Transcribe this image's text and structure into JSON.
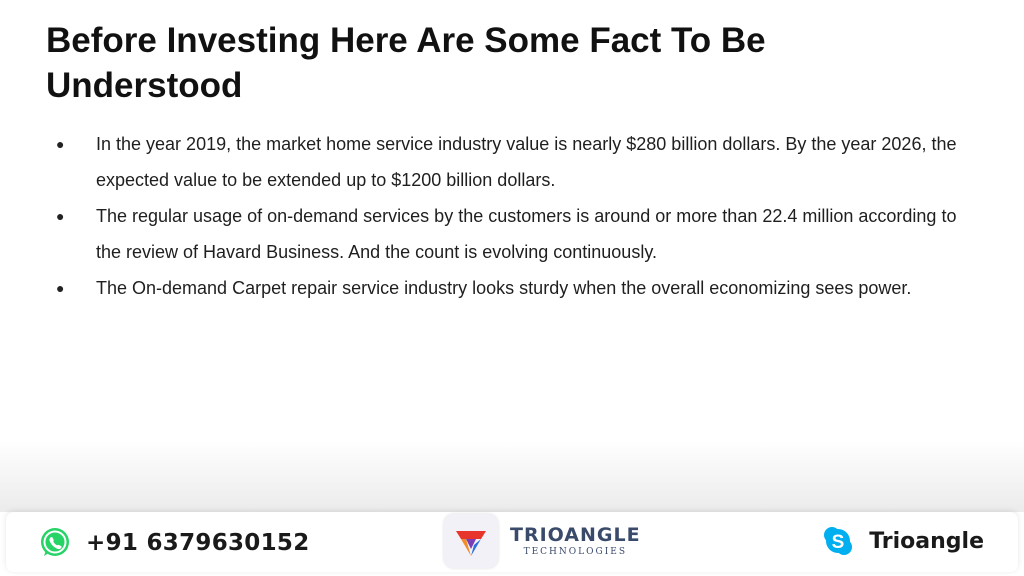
{
  "slide": {
    "title": "Before Investing Here Are Some Fact To Be Understood",
    "bullet_symbol": "●",
    "bullets": [
      "In the year 2019, the market home service industry value is nearly $280 billion dollars. By the year 2026, the expected value to be extended up to $1200 billion dollars.",
      "The regular usage of on-demand services by the customers is around or more than 22.4 million according to the review of Havard Business. And the count is evolving continuously.",
      "The On-demand Carpet repair service industry looks sturdy when the overall economizing sees power."
    ]
  },
  "footer": {
    "phone": "+91 6379630152",
    "phone_icon": "whatsapp-icon",
    "brand_name": "TRIOANGLE",
    "brand_sub": "TECHNOLOGIES",
    "logo_icon": "trioangle-logo-icon",
    "skype_name": "Trioangle",
    "skype_icon": "skype-icon",
    "colors": {
      "whatsapp": "#25d366",
      "skype": "#00aff0",
      "brand_text": "#3a4a6b"
    }
  }
}
